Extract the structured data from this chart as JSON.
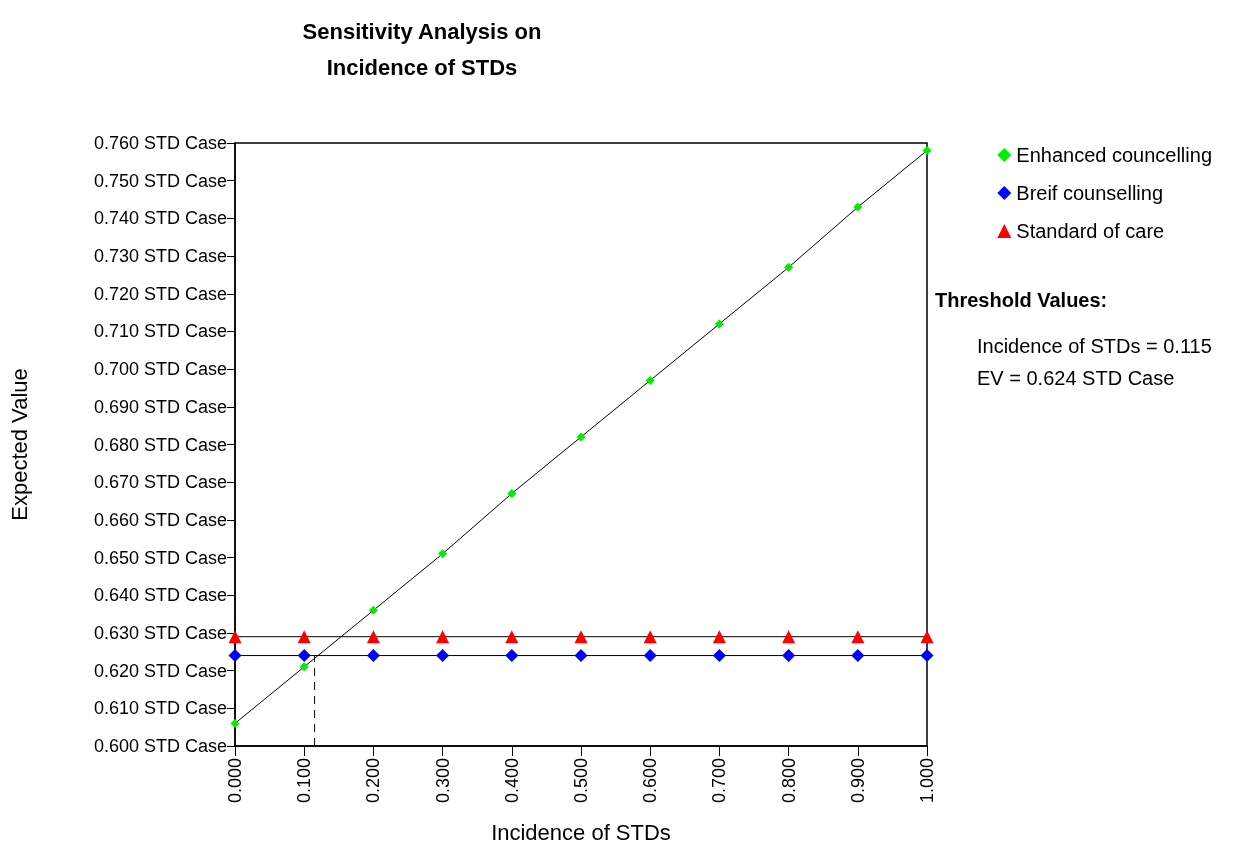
{
  "chart_data": {
    "type": "line",
    "title": "Sensitivity Analysis on\nIncidence of STDs",
    "xlabel": "Incidence of STDs",
    "ylabel": "Expected Value",
    "x": [
      0,
      0.1,
      0.2,
      0.3,
      0.4,
      0.5,
      0.6,
      0.7,
      0.8,
      0.9,
      1
    ],
    "series": [
      {
        "name": "Enhanced councelling",
        "color": "#00ee00",
        "marker": "diamond",
        "values": [
          0.606,
          0.621,
          0.636,
          0.651,
          0.667,
          0.682,
          0.697,
          0.712,
          0.727,
          0.743,
          0.758
        ]
      },
      {
        "name": "Breif counselling",
        "color": "#0000ff",
        "marker": "diamond",
        "values": [
          0.624,
          0.624,
          0.624,
          0.624,
          0.624,
          0.624,
          0.624,
          0.624,
          0.624,
          0.624,
          0.624
        ]
      },
      {
        "name": "Standard of care",
        "color": "#ff0000",
        "marker": "triangle",
        "values": [
          0.629,
          0.629,
          0.629,
          0.629,
          0.629,
          0.629,
          0.629,
          0.629,
          0.629,
          0.629,
          0.629
        ]
      },
      {
        "color": "#000000",
        "marker": "none",
        "line_style": "dashed",
        "x": [
          0.115,
          0.115
        ],
        "values": [
          0.6,
          0.624
        ]
      }
    ],
    "xlim": [
      0,
      1
    ],
    "xticks": [
      {
        "value": 0,
        "label": "0.000"
      },
      {
        "value": 0.1,
        "label": "0.100"
      },
      {
        "value": 0.2,
        "label": "0.200"
      },
      {
        "value": 0.3,
        "label": "0.300"
      },
      {
        "value": 0.4,
        "label": "0.400"
      },
      {
        "value": 0.5,
        "label": "0.500"
      },
      {
        "value": 0.6,
        "label": "0.600"
      },
      {
        "value": 0.7,
        "label": "0.700"
      },
      {
        "value": 0.8,
        "label": "0.800"
      },
      {
        "value": 0.9,
        "label": "0.900"
      },
      {
        "value": 1,
        "label": "1.000"
      }
    ],
    "ylim": [
      0.6,
      0.76
    ],
    "yticks": [
      {
        "value": 0.6,
        "label": "0.600 STD Case"
      },
      {
        "value": 0.61,
        "label": "0.610 STD Case"
      },
      {
        "value": 0.62,
        "label": "0.620 STD Case"
      },
      {
        "value": 0.63,
        "label": "0.630 STD Case"
      },
      {
        "value": 0.64,
        "label": "0.640 STD Case"
      },
      {
        "value": 0.65,
        "label": "0.650 STD Case"
      },
      {
        "value": 0.66,
        "label": "0.660 STD Case"
      },
      {
        "value": 0.67,
        "label": "0.670 STD Case"
      },
      {
        "value": 0.68,
        "label": "0.680 STD Case"
      },
      {
        "value": 0.69,
        "label": "0.690 STD Case"
      },
      {
        "value": 0.7,
        "label": "0.700 STD Case"
      },
      {
        "value": 0.71,
        "label": "0.710 STD Case"
      },
      {
        "value": 0.72,
        "label": "0.720 STD Case"
      },
      {
        "value": 0.73,
        "label": "0.730 STD Case"
      },
      {
        "value": 0.74,
        "label": "0.740 STD Case"
      },
      {
        "value": 0.75,
        "label": "0.750 STD Case"
      },
      {
        "value": 0.76,
        "label": "0.760 STD Case"
      }
    ],
    "annotations": [
      "Threshold Values:",
      "Incidence of STDs = 0.115\nEV = 0.624 STD Case"
    ],
    "grid": false,
    "legend": "right"
  }
}
